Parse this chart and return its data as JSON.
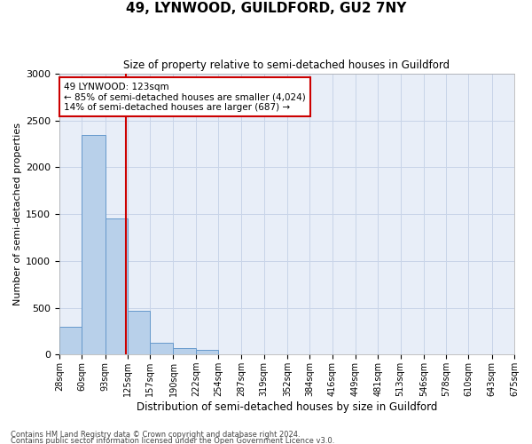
{
  "title": "49, LYNWOOD, GUILDFORD, GU2 7NY",
  "subtitle": "Size of property relative to semi-detached houses in Guildford",
  "xlabel": "Distribution of semi-detached houses by size in Guildford",
  "ylabel": "Number of semi-detached properties",
  "footnote1": "Contains HM Land Registry data © Crown copyright and database right 2024.",
  "footnote2": "Contains public sector information licensed under the Open Government Licence v3.0.",
  "bin_edges": [
    28,
    60,
    93,
    125,
    157,
    190,
    222,
    254,
    287,
    319,
    352,
    384,
    416,
    449,
    481,
    513,
    546,
    578,
    610,
    643,
    675
  ],
  "bar_heights": [
    300,
    2350,
    1450,
    470,
    130,
    65,
    55,
    0,
    0,
    0,
    0,
    0,
    0,
    0,
    0,
    0,
    0,
    0,
    0,
    0
  ],
  "bar_color": "#b8d0ea",
  "bar_edge_color": "#6699cc",
  "vline_x": 123,
  "vline_color": "#cc0000",
  "ylim": [
    0,
    3000
  ],
  "yticks": [
    0,
    500,
    1000,
    1500,
    2000,
    2500,
    3000
  ],
  "annotation_text": "49 LYNWOOD: 123sqm\n← 85% of semi-detached houses are smaller (4,024)\n14% of semi-detached houses are larger (687) →",
  "annotation_box_color": "#ffffff",
  "annotation_box_edge": "#cc0000",
  "grid_color": "#c8d4e8",
  "background_color": "#e8eef8",
  "title_fontsize": 11,
  "subtitle_fontsize": 9
}
